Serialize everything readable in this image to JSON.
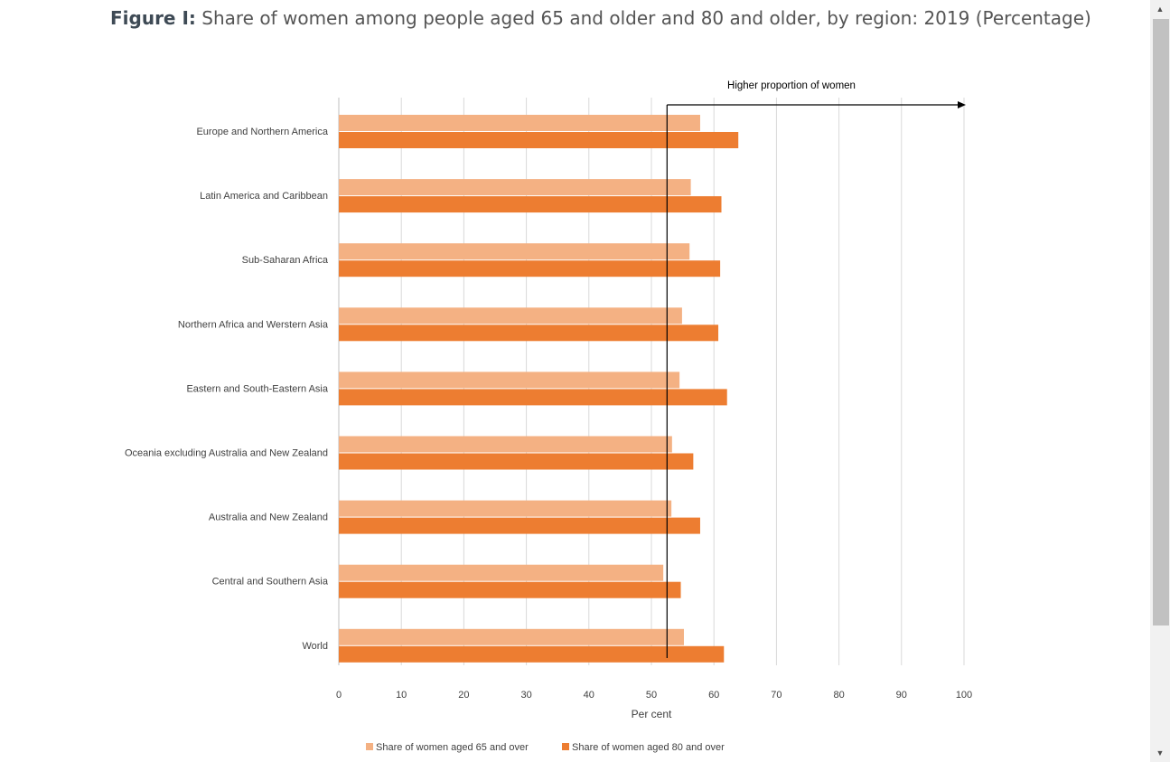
{
  "figure": {
    "label": "Figure I:",
    "caption": "Share of women among people aged 65 and older and 80 and older, by region: 2019 (Percentage)"
  },
  "chart_data": {
    "type": "bar",
    "orientation": "horizontal",
    "categories": [
      "Europe and Northern America",
      "Latin America and Caribbean",
      "Sub-Saharan Africa",
      "Northern Africa and Werstern Asia",
      "Eastern and South-Eastern Asia",
      "Oceania excluding Australia and New Zealand",
      "Australia and New Zealand",
      "Central and Southern Asia",
      "World"
    ],
    "series": [
      {
        "name": "Share of women aged 65 and over",
        "color": "#f4b183",
        "values": [
          57.8,
          56.3,
          56.1,
          54.9,
          54.5,
          53.3,
          53.2,
          51.9,
          55.2
        ]
      },
      {
        "name": "Share of women aged 80 and over",
        "color": "#ed7d31",
        "values": [
          63.9,
          61.2,
          61.0,
          60.7,
          62.1,
          56.7,
          57.8,
          54.7,
          61.6
        ]
      }
    ],
    "xlabel": "Per cent",
    "xlim": [
      0,
      100
    ],
    "xticks": [
      0,
      10,
      20,
      30,
      40,
      50,
      60,
      70,
      80,
      90,
      100
    ],
    "grid": "vertical",
    "legend_position": "bottom",
    "reference_line": {
      "x": 52.5
    },
    "annotation": {
      "text": "Higher proportion of women"
    }
  },
  "scrollbar": {
    "up_icon": "▲",
    "down_icon": "▼"
  }
}
